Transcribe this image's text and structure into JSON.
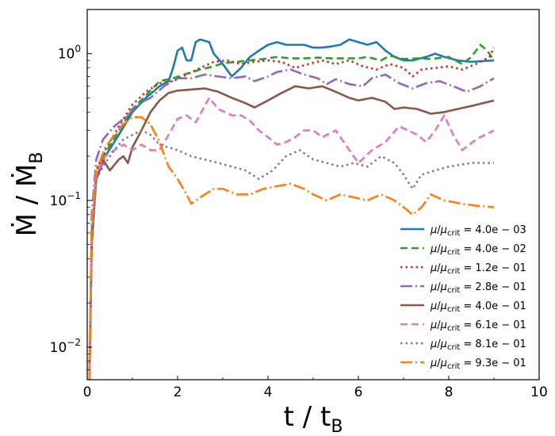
{
  "chart_data": {
    "type": "line",
    "title": "",
    "xlabel": "t / t_B",
    "ylabel": "Ṁ / Ṁ_B",
    "xlim": [
      0,
      10
    ],
    "ylim": [
      0.006,
      2.0
    ],
    "yscale": "log",
    "x_ticks": [
      0,
      2,
      4,
      6,
      8,
      10
    ],
    "x_tick_labels": [
      "0",
      "2",
      "4",
      "6",
      "8",
      "10"
    ],
    "y_ticks": [
      0.01,
      0.1,
      1.0
    ],
    "y_tick_labels": [
      {
        "base": "10",
        "exp": "−2"
      },
      {
        "base": "10",
        "exp": "−1"
      },
      {
        "base": "10",
        "exp": "0"
      }
    ],
    "legend_position": "lower-right",
    "series": [
      {
        "name": "μ/μcrit = 4.0e − 03",
        "mu": "4.0e − 03",
        "color": "#1f77b4",
        "dash": "solid",
        "points": [
          [
            0.05,
            0.006
          ],
          [
            0.1,
            0.05
          ],
          [
            0.2,
            0.14
          ],
          [
            0.4,
            0.2
          ],
          [
            0.7,
            0.28
          ],
          [
            1.0,
            0.4
          ],
          [
            1.3,
            0.5
          ],
          [
            1.6,
            0.6
          ],
          [
            1.8,
            0.65
          ],
          [
            1.9,
            0.8
          ],
          [
            2.0,
            1.05
          ],
          [
            2.1,
            1.1
          ],
          [
            2.2,
            0.9
          ],
          [
            2.3,
            0.9
          ],
          [
            2.4,
            1.2
          ],
          [
            2.5,
            1.25
          ],
          [
            2.7,
            1.2
          ],
          [
            2.8,
            1.0
          ],
          [
            3.0,
            0.85
          ],
          [
            3.2,
            0.7
          ],
          [
            3.4,
            0.8
          ],
          [
            3.6,
            0.95
          ],
          [
            3.8,
            1.05
          ],
          [
            4.0,
            1.15
          ],
          [
            4.2,
            1.2
          ],
          [
            4.4,
            1.15
          ],
          [
            4.6,
            1.15
          ],
          [
            4.8,
            1.15
          ],
          [
            5.0,
            1.1
          ],
          [
            5.2,
            1.1
          ],
          [
            5.4,
            1.12
          ],
          [
            5.6,
            1.15
          ],
          [
            5.8,
            1.25
          ],
          [
            6.0,
            1.2
          ],
          [
            6.2,
            1.15
          ],
          [
            6.4,
            1.2
          ],
          [
            6.6,
            1.05
          ],
          [
            6.8,
            0.95
          ],
          [
            7.0,
            0.9
          ],
          [
            7.2,
            0.9
          ],
          [
            7.5,
            0.95
          ],
          [
            7.7,
            1.0
          ],
          [
            7.9,
            0.95
          ],
          [
            8.2,
            0.9
          ],
          [
            8.5,
            0.88
          ],
          [
            9.0,
            0.9
          ]
        ]
      },
      {
        "name": "μ/μcrit = 4.0e − 02",
        "mu": "4.0e − 02",
        "color": "#2ca02c",
        "dash": "9,5",
        "points": [
          [
            0.05,
            0.006
          ],
          [
            0.1,
            0.05
          ],
          [
            0.2,
            0.15
          ],
          [
            0.4,
            0.21
          ],
          [
            0.7,
            0.3
          ],
          [
            1.0,
            0.42
          ],
          [
            1.3,
            0.52
          ],
          [
            1.6,
            0.65
          ],
          [
            1.9,
            0.68
          ],
          [
            2.2,
            0.73
          ],
          [
            2.5,
            0.78
          ],
          [
            2.8,
            0.82
          ],
          [
            3.0,
            0.86
          ],
          [
            3.3,
            0.88
          ],
          [
            3.6,
            0.9
          ],
          [
            3.9,
            0.92
          ],
          [
            4.2,
            0.95
          ],
          [
            4.5,
            0.93
          ],
          [
            4.8,
            0.93
          ],
          [
            5.1,
            0.94
          ],
          [
            5.4,
            0.93
          ],
          [
            5.7,
            0.93
          ],
          [
            6.0,
            0.93
          ],
          [
            6.2,
            0.95
          ],
          [
            6.5,
            0.9
          ],
          [
            6.7,
            0.97
          ],
          [
            7.0,
            0.92
          ],
          [
            7.3,
            0.93
          ],
          [
            7.6,
            0.92
          ],
          [
            8.0,
            0.95
          ],
          [
            8.3,
            0.85
          ],
          [
            8.5,
            0.95
          ],
          [
            8.7,
            1.15
          ],
          [
            8.85,
            1.05
          ],
          [
            9.0,
            0.9
          ]
        ]
      },
      {
        "name": "μ/μcrit = 1.2e − 01",
        "mu": "1.2e − 01",
        "color": "#d62728",
        "dash": "2.5,4",
        "points": [
          [
            0.05,
            0.006
          ],
          [
            0.1,
            0.05
          ],
          [
            0.2,
            0.16
          ],
          [
            0.4,
            0.22
          ],
          [
            0.7,
            0.32
          ],
          [
            1.0,
            0.45
          ],
          [
            1.3,
            0.55
          ],
          [
            1.6,
            0.63
          ],
          [
            1.9,
            0.65
          ],
          [
            2.2,
            0.72
          ],
          [
            2.5,
            0.8
          ],
          [
            2.8,
            0.88
          ],
          [
            3.1,
            0.9
          ],
          [
            3.4,
            0.85
          ],
          [
            3.7,
            0.88
          ],
          [
            4.0,
            0.9
          ],
          [
            4.3,
            0.88
          ],
          [
            4.6,
            0.8
          ],
          [
            4.9,
            0.85
          ],
          [
            5.2,
            0.9
          ],
          [
            5.5,
            0.85
          ],
          [
            5.8,
            0.9
          ],
          [
            6.1,
            0.82
          ],
          [
            6.4,
            0.78
          ],
          [
            6.7,
            0.85
          ],
          [
            7.0,
            0.8
          ],
          [
            7.2,
            0.7
          ],
          [
            7.4,
            0.78
          ],
          [
            7.7,
            0.8
          ],
          [
            8.0,
            0.82
          ],
          [
            8.3,
            0.78
          ],
          [
            8.6,
            0.85
          ],
          [
            8.9,
            0.95
          ],
          [
            9.0,
            1.1
          ]
        ]
      },
      {
        "name": "μ/μcrit = 2.8e − 01",
        "mu": "2.8e − 01",
        "color": "#9467bd",
        "dash": "15,4,2,4",
        "points": [
          [
            0.05,
            0.006
          ],
          [
            0.1,
            0.08
          ],
          [
            0.2,
            0.19
          ],
          [
            0.35,
            0.26
          ],
          [
            0.6,
            0.32
          ],
          [
            0.9,
            0.38
          ],
          [
            1.1,
            0.45
          ],
          [
            1.4,
            0.5
          ],
          [
            1.7,
            0.6
          ],
          [
            2.0,
            0.68
          ],
          [
            2.3,
            0.68
          ],
          [
            2.6,
            0.72
          ],
          [
            2.9,
            0.7
          ],
          [
            3.2,
            0.68
          ],
          [
            3.5,
            0.7
          ],
          [
            3.7,
            0.65
          ],
          [
            4.0,
            0.7
          ],
          [
            4.2,
            0.75
          ],
          [
            4.5,
            0.78
          ],
          [
            4.8,
            0.72
          ],
          [
            5.1,
            0.68
          ],
          [
            5.3,
            0.62
          ],
          [
            5.5,
            0.67
          ],
          [
            5.8,
            0.62
          ],
          [
            6.1,
            0.6
          ],
          [
            6.3,
            0.68
          ],
          [
            6.6,
            0.72
          ],
          [
            6.9,
            0.63
          ],
          [
            7.2,
            0.58
          ],
          [
            7.5,
            0.63
          ],
          [
            7.8,
            0.65
          ],
          [
            8.1,
            0.6
          ],
          [
            8.4,
            0.55
          ],
          [
            8.7,
            0.6
          ],
          [
            9.0,
            0.68
          ]
        ]
      },
      {
        "name": "μ/μcrit = 4.0e − 01",
        "mu": "4.0e − 01",
        "color": "#8c564b",
        "dash": "solid",
        "points": [
          [
            0.05,
            0.006
          ],
          [
            0.1,
            0.06
          ],
          [
            0.2,
            0.14
          ],
          [
            0.35,
            0.19
          ],
          [
            0.5,
            0.16
          ],
          [
            0.7,
            0.19
          ],
          [
            0.8,
            0.2
          ],
          [
            0.9,
            0.18
          ],
          [
            1.0,
            0.23
          ],
          [
            1.2,
            0.3
          ],
          [
            1.4,
            0.4
          ],
          [
            1.6,
            0.48
          ],
          [
            1.8,
            0.54
          ],
          [
            2.0,
            0.56
          ],
          [
            2.3,
            0.57
          ],
          [
            2.6,
            0.58
          ],
          [
            2.9,
            0.55
          ],
          [
            3.2,
            0.5
          ],
          [
            3.5,
            0.46
          ],
          [
            3.7,
            0.43
          ],
          [
            4.0,
            0.48
          ],
          [
            4.3,
            0.54
          ],
          [
            4.6,
            0.6
          ],
          [
            4.9,
            0.58
          ],
          [
            5.2,
            0.6
          ],
          [
            5.5,
            0.55
          ],
          [
            5.8,
            0.5
          ],
          [
            6.0,
            0.48
          ],
          [
            6.3,
            0.5
          ],
          [
            6.6,
            0.47
          ],
          [
            6.8,
            0.42
          ],
          [
            7.0,
            0.43
          ],
          [
            7.3,
            0.42
          ],
          [
            7.6,
            0.39
          ],
          [
            7.9,
            0.4
          ],
          [
            8.2,
            0.42
          ],
          [
            8.5,
            0.44
          ],
          [
            9.0,
            0.48
          ]
        ]
      },
      {
        "name": "μ/μcrit = 6.1e − 01",
        "mu": "6.1e − 01",
        "color": "#e377c2",
        "dash": "9,5",
        "points": [
          [
            0.05,
            0.006
          ],
          [
            0.1,
            0.06
          ],
          [
            0.2,
            0.15
          ],
          [
            0.4,
            0.2
          ],
          [
            0.6,
            0.22
          ],
          [
            0.8,
            0.24
          ],
          [
            1.0,
            0.22
          ],
          [
            1.2,
            0.24
          ],
          [
            1.4,
            0.22
          ],
          [
            1.6,
            0.22
          ],
          [
            1.8,
            0.28
          ],
          [
            2.0,
            0.36
          ],
          [
            2.2,
            0.38
          ],
          [
            2.4,
            0.34
          ],
          [
            2.6,
            0.44
          ],
          [
            2.7,
            0.5
          ],
          [
            2.9,
            0.42
          ],
          [
            3.2,
            0.38
          ],
          [
            3.4,
            0.38
          ],
          [
            3.6,
            0.35
          ],
          [
            3.8,
            0.3
          ],
          [
            4.0,
            0.27
          ],
          [
            4.2,
            0.24
          ],
          [
            4.4,
            0.25
          ],
          [
            4.6,
            0.27
          ],
          [
            4.8,
            0.3
          ],
          [
            5.0,
            0.3
          ],
          [
            5.2,
            0.27
          ],
          [
            5.5,
            0.3
          ],
          [
            5.8,
            0.22
          ],
          [
            6.0,
            0.18
          ],
          [
            6.3,
            0.22
          ],
          [
            6.6,
            0.25
          ],
          [
            6.9,
            0.32
          ],
          [
            7.1,
            0.3
          ],
          [
            7.3,
            0.28
          ],
          [
            7.5,
            0.25
          ],
          [
            7.7,
            0.3
          ],
          [
            7.9,
            0.38
          ],
          [
            8.1,
            0.28
          ],
          [
            8.3,
            0.22
          ],
          [
            8.6,
            0.26
          ],
          [
            9.0,
            0.3
          ]
        ]
      },
      {
        "name": "μ/μcrit = 8.1e − 01",
        "mu": "8.1e − 01",
        "color": "#7f7f7f",
        "dash": "2.5,4",
        "points": [
          [
            0.05,
            0.006
          ],
          [
            0.1,
            0.06
          ],
          [
            0.2,
            0.14
          ],
          [
            0.4,
            0.18
          ],
          [
            0.6,
            0.22
          ],
          [
            0.8,
            0.26
          ],
          [
            1.0,
            0.28
          ],
          [
            1.2,
            0.3
          ],
          [
            1.4,
            0.28
          ],
          [
            1.6,
            0.24
          ],
          [
            1.8,
            0.23
          ],
          [
            2.0,
            0.22
          ],
          [
            2.3,
            0.2
          ],
          [
            2.6,
            0.19
          ],
          [
            2.9,
            0.18
          ],
          [
            3.2,
            0.17
          ],
          [
            3.5,
            0.16
          ],
          [
            3.8,
            0.14
          ],
          [
            4.1,
            0.16
          ],
          [
            4.4,
            0.2
          ],
          [
            4.7,
            0.22
          ],
          [
            5.0,
            0.19
          ],
          [
            5.3,
            0.18
          ],
          [
            5.6,
            0.17
          ],
          [
            5.9,
            0.18
          ],
          [
            6.2,
            0.17
          ],
          [
            6.5,
            0.2
          ],
          [
            6.8,
            0.18
          ],
          [
            7.0,
            0.15
          ],
          [
            7.2,
            0.12
          ],
          [
            7.4,
            0.15
          ],
          [
            7.7,
            0.16
          ],
          [
            8.0,
            0.17
          ],
          [
            8.5,
            0.18
          ],
          [
            9.0,
            0.18
          ]
        ]
      },
      {
        "name": "μ/μcrit = 9.3e − 01",
        "mu": "9.3e − 01",
        "color": "#ff7f0e",
        "dash": "15,4,2,4",
        "points": [
          [
            0.05,
            0.006
          ],
          [
            0.1,
            0.07
          ],
          [
            0.2,
            0.16
          ],
          [
            0.4,
            0.23
          ],
          [
            0.6,
            0.28
          ],
          [
            0.8,
            0.33
          ],
          [
            1.0,
            0.37
          ],
          [
            1.2,
            0.37
          ],
          [
            1.4,
            0.33
          ],
          [
            1.6,
            0.25
          ],
          [
            1.8,
            0.17
          ],
          [
            2.0,
            0.14
          ],
          [
            2.2,
            0.11
          ],
          [
            2.3,
            0.095
          ],
          [
            2.5,
            0.105
          ],
          [
            2.8,
            0.12
          ],
          [
            3.0,
            0.12
          ],
          [
            3.3,
            0.11
          ],
          [
            3.6,
            0.11
          ],
          [
            3.9,
            0.12
          ],
          [
            4.2,
            0.125
          ],
          [
            4.5,
            0.13
          ],
          [
            4.8,
            0.12
          ],
          [
            5.0,
            0.11
          ],
          [
            5.3,
            0.1
          ],
          [
            5.6,
            0.11
          ],
          [
            5.9,
            0.105
          ],
          [
            6.2,
            0.1
          ],
          [
            6.5,
            0.11
          ],
          [
            6.8,
            0.1
          ],
          [
            7.0,
            0.09
          ],
          [
            7.2,
            0.08
          ],
          [
            7.4,
            0.09
          ],
          [
            7.6,
            0.11
          ],
          [
            7.9,
            0.1
          ],
          [
            8.3,
            0.095
          ],
          [
            8.6,
            0.092
          ],
          [
            9.0,
            0.09
          ]
        ]
      }
    ]
  }
}
